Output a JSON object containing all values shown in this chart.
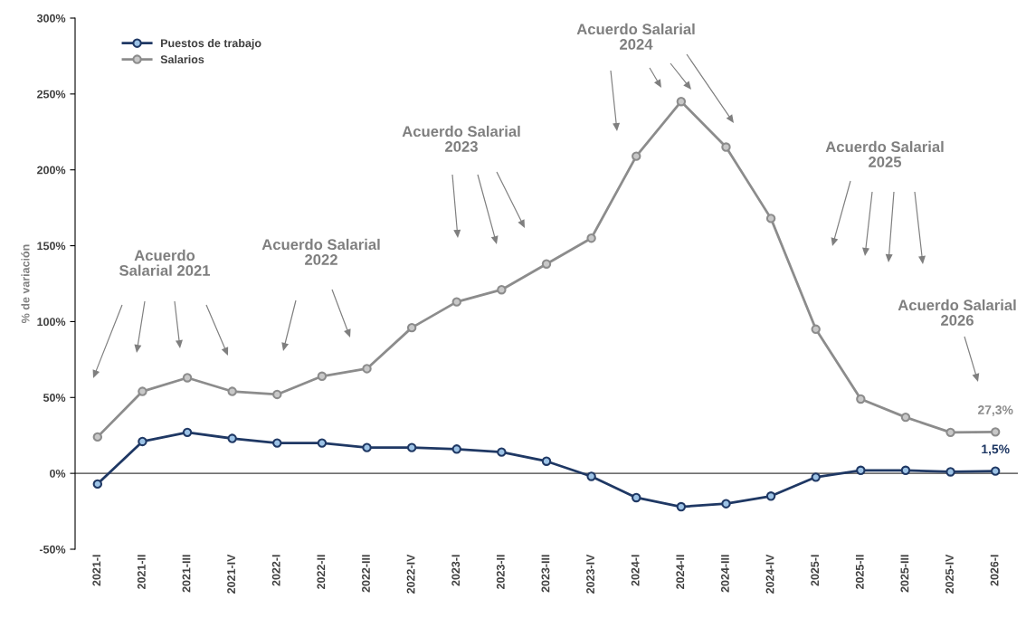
{
  "chart_data": {
    "type": "line",
    "ylabel": "% de variación",
    "categories": [
      "2021-I",
      "2021-II",
      "2021-III",
      "2021-IV",
      "2022-I",
      "2022-II",
      "2022-III",
      "2022-IV",
      "2023-I",
      "2023-II",
      "2023-III",
      "2023-IV",
      "2024-I",
      "2024-II",
      "2024-III",
      "2024-IV",
      "2025-I",
      "2025-II",
      "2025-III",
      "2025-IV",
      "2026-I"
    ],
    "series": [
      {
        "name": "Puestos de trabajo",
        "color": "#1f3864",
        "values": [
          -7,
          21,
          27,
          23,
          20,
          20,
          17,
          17,
          16,
          14,
          8,
          -2,
          -16,
          -22,
          -20,
          -15,
          -2.5,
          2,
          2,
          1,
          1.5
        ],
        "value_labels": [
          null,
          null,
          null,
          null,
          null,
          null,
          null,
          null,
          null,
          null,
          null,
          null,
          null,
          null,
          null,
          null,
          null,
          null,
          null,
          null,
          "1,5%"
        ]
      },
      {
        "name": "Salarios",
        "color": "#8c8c8c",
        "values": [
          24,
          54,
          63,
          54,
          52,
          64,
          69,
          96,
          113,
          121,
          138,
          155,
          209,
          245,
          215,
          168,
          95,
          49,
          37,
          27,
          27.3
        ],
        "value_labels": [
          null,
          null,
          null,
          null,
          null,
          null,
          null,
          null,
          null,
          null,
          null,
          null,
          null,
          null,
          null,
          null,
          null,
          null,
          null,
          null,
          "27,3%"
        ]
      }
    ],
    "ylim": [
      -50,
      300
    ],
    "yticks": [
      {
        "value": -50,
        "label": "-50%"
      },
      {
        "value": 0,
        "label": "0%"
      },
      {
        "value": 50,
        "label": "50%"
      },
      {
        "value": 100,
        "label": "100%"
      },
      {
        "value": 150,
        "label": "150%"
      },
      {
        "value": 200,
        "label": "200%"
      },
      {
        "value": 250,
        "label": "250%"
      },
      {
        "value": 300,
        "label": "300%"
      }
    ],
    "marker": "circle",
    "line_style": "solid",
    "grid": false,
    "ref_lines": [
      {
        "axis": "y",
        "value": 0,
        "color": "#404040"
      }
    ],
    "legend": "top left",
    "annotations": [
      "Acuerdo\nSalarial 2021",
      "Acuerdo Salarial\n2022",
      "Acuerdo Salarial\n2023",
      "Acuerdo Salarial\n2024",
      "Acuerdo Salarial\n2025",
      "Acuerdo Salarial\n2026"
    ]
  }
}
